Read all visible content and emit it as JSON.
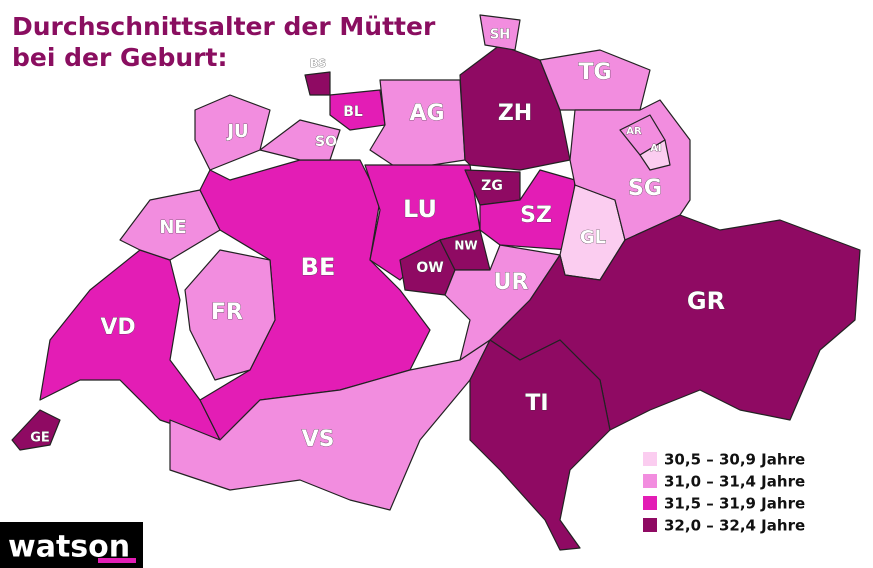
{
  "title": [
    "Durchschnittsalter der Mütter",
    "bei der Geburt:"
  ],
  "legend": [
    {
      "label": "30,5 – 30,9 Jahre",
      "color": "#fbcdf0"
    },
    {
      "label": "31,0 – 31,4 Jahre",
      "color": "#f28ddf"
    },
    {
      "label": "31,5 – 31,9 Jahre",
      "color": "#e31db5"
    },
    {
      "label": "32,0 – 32,4 Jahre",
      "color": "#8f0a63"
    }
  ],
  "cantons": [
    {
      "label": "GE",
      "class": 3
    },
    {
      "label": "VD",
      "class": 2
    },
    {
      "label": "NE",
      "class": 1
    },
    {
      "label": "JU",
      "class": 1
    },
    {
      "label": "FR",
      "class": 1
    },
    {
      "label": "BE",
      "class": 2
    },
    {
      "label": "VS",
      "class": 1
    },
    {
      "label": "SO",
      "class": 1
    },
    {
      "label": "BS",
      "class": 3
    },
    {
      "label": "BL",
      "class": 2
    },
    {
      "label": "AG",
      "class": 1
    },
    {
      "label": "ZH",
      "class": 3
    },
    {
      "label": "SH",
      "class": 1
    },
    {
      "label": "TG",
      "class": 1
    },
    {
      "label": "LU",
      "class": 2
    },
    {
      "label": "ZG",
      "class": 3
    },
    {
      "label": "SZ",
      "class": 2
    },
    {
      "label": "OW",
      "class": 3
    },
    {
      "label": "NW",
      "class": 3
    },
    {
      "label": "UR",
      "class": 1
    },
    {
      "label": "GL",
      "class": 0
    },
    {
      "label": "SG",
      "class": 1
    },
    {
      "label": "AR",
      "class": 1
    },
    {
      "label": "AI",
      "class": 0
    },
    {
      "label": "GR",
      "class": 3
    },
    {
      "label": "TI",
      "class": 3
    }
  ],
  "logo": "watson"
}
